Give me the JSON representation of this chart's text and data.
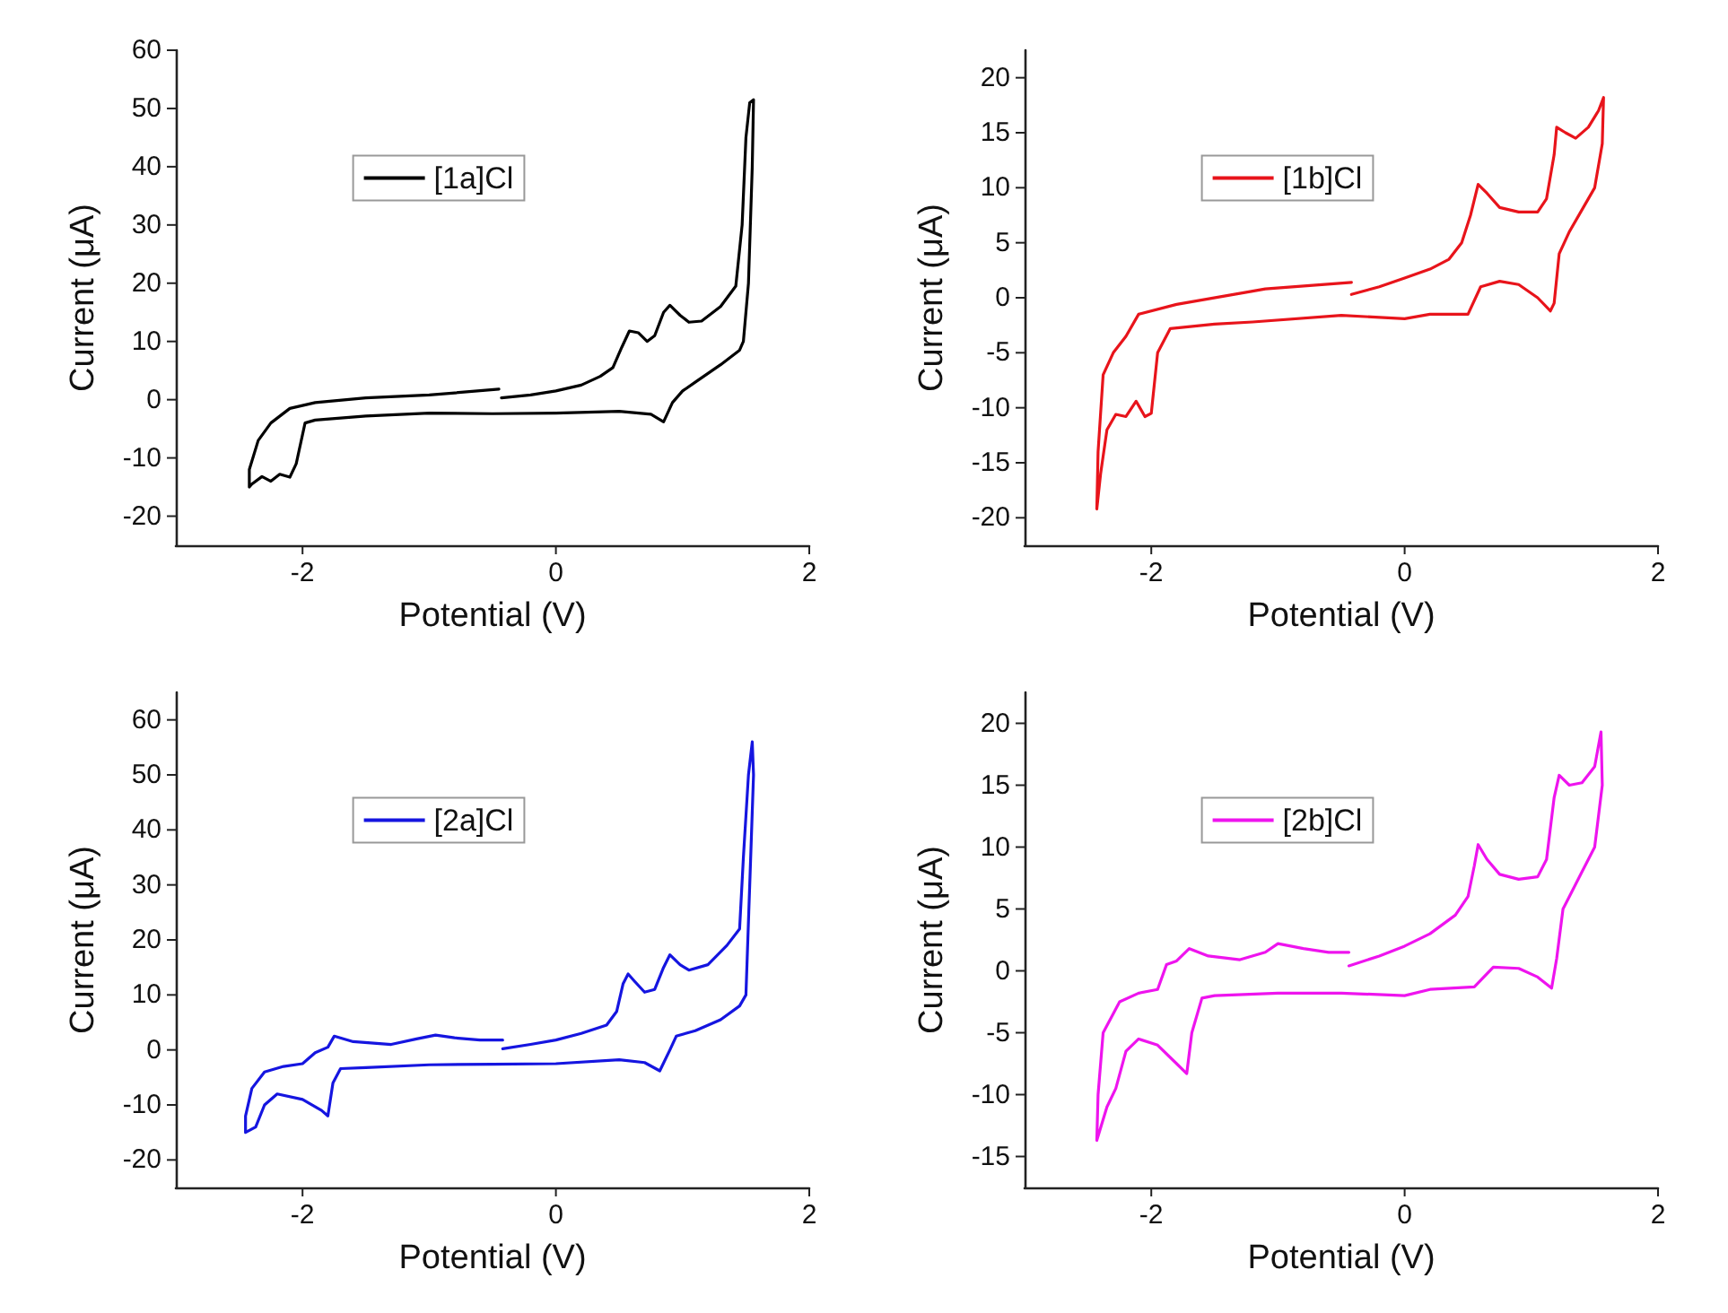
{
  "chart_data": [
    {
      "type": "line",
      "xlabel": "Potential (V)",
      "ylabel": "Current (μA)",
      "xlim": [
        -3,
        2
      ],
      "xticks": [
        -2,
        0,
        2
      ],
      "ylim": [
        -25,
        60
      ],
      "yticks": [
        -20,
        -10,
        0,
        10,
        20,
        30,
        40,
        50,
        60
      ],
      "legend": "top",
      "marker": "none",
      "line_style": "solid",
      "series": [
        {
          "name": "[1a]Cl",
          "color": "#000000",
          "x": [
            -0.43,
            -0.2,
            0,
            0.2,
            0.35,
            0.45,
            0.52,
            0.58,
            0.65,
            0.72,
            0.78,
            0.85,
            0.9,
            0.98,
            1.05,
            1.15,
            1.3,
            1.42,
            1.47,
            1.5,
            1.53,
            1.56,
            1.55,
            1.52,
            1.48,
            1.45,
            1.3,
            1.1,
            1.0,
            0.92,
            0.85,
            0.75,
            0.5,
            0,
            -0.5,
            -1,
            -1.5,
            -1.9,
            -1.98,
            -2.05,
            -2.1,
            -2.18,
            -2.25,
            -2.32,
            -2.4,
            -2.42,
            -2.42,
            -2.35,
            -2.25,
            -2.1,
            -1.9,
            -1.5,
            -1,
            -0.45
          ],
          "values": [
            0.3,
            0.8,
            1.5,
            2.5,
            4,
            5.5,
            9,
            11.8,
            11.5,
            10,
            11,
            15,
            16.2,
            14.5,
            13.3,
            13.5,
            16,
            19.5,
            30,
            45,
            51,
            51.5,
            40,
            20,
            10,
            8.5,
            6,
            3,
            1.5,
            -0.5,
            -3.8,
            -2.5,
            -2,
            -2.3,
            -2.4,
            -2.3,
            -2.8,
            -3.5,
            -4,
            -11,
            -13.3,
            -12.8,
            -14,
            -13.2,
            -14.5,
            -15,
            -12,
            -7,
            -4,
            -1.5,
            -0.5,
            0.3,
            0.8,
            1.8
          ]
        }
      ]
    },
    {
      "type": "line",
      "xlabel": "Potential (V)",
      "ylabel": "Current (μA)",
      "xlim": [
        -3,
        2
      ],
      "xticks": [
        -2,
        0,
        2
      ],
      "ylim": [
        -22.5,
        22.5
      ],
      "yticks": [
        -20,
        -15,
        -10,
        -5,
        0,
        5,
        10,
        15,
        20
      ],
      "legend": "top",
      "marker": "none",
      "line_style": "solid",
      "series": [
        {
          "name": "[1b]Cl",
          "color": "#e8141b",
          "x": [
            -0.42,
            -0.2,
            0,
            0.2,
            0.35,
            0.45,
            0.52,
            0.58,
            0.65,
            0.75,
            0.9,
            1.05,
            1.12,
            1.18,
            1.2,
            1.27,
            1.35,
            1.45,
            1.53,
            1.57,
            1.56,
            1.5,
            1.4,
            1.3,
            1.22,
            1.18,
            1.15,
            1.05,
            0.9,
            0.75,
            0.6,
            0.5,
            0.2,
            0,
            -0.5,
            -1.2,
            -1.5,
            -1.85,
            -1.95,
            -2.0,
            -2.05,
            -2.12,
            -2.2,
            -2.28,
            -2.35,
            -2.4,
            -2.43,
            -2.42,
            -2.38,
            -2.3,
            -2.2,
            -2.1,
            -1.8,
            -1.2,
            -1.1,
            -0.42
          ],
          "values": [
            0.3,
            1,
            1.8,
            2.6,
            3.5,
            5,
            7.5,
            10.3,
            9.5,
            8.2,
            7.8,
            7.8,
            9,
            13,
            15.5,
            15,
            14.5,
            15.5,
            17,
            18.2,
            14,
            10,
            8,
            6,
            4,
            -0.5,
            -1.2,
            0,
            1.2,
            1.5,
            1,
            -1.5,
            -1.5,
            -1.9,
            -1.6,
            -2.2,
            -2.4,
            -2.8,
            -5,
            -10.5,
            -10.8,
            -9.4,
            -10.8,
            -10.6,
            -12,
            -16,
            -19.2,
            -14,
            -7,
            -5,
            -3.5,
            -1.5,
            -0.6,
            0.6,
            0.8,
            1.4
          ]
        }
      ]
    },
    {
      "type": "line",
      "xlabel": "Potential (V)",
      "ylabel": "Current (μA)",
      "xlim": [
        -3,
        2
      ],
      "xticks": [
        -2,
        0,
        2
      ],
      "ylim": [
        -25,
        65
      ],
      "yticks": [
        -20,
        -10,
        0,
        10,
        20,
        30,
        40,
        50,
        60
      ],
      "legend": "top",
      "marker": "none",
      "line_style": "solid",
      "series": [
        {
          "name": "[2a]Cl",
          "color": "#1515e0",
          "x": [
            -0.42,
            -0.2,
            0,
            0.2,
            0.4,
            0.48,
            0.53,
            0.57,
            0.62,
            0.7,
            0.78,
            0.85,
            0.9,
            0.98,
            1.05,
            1.2,
            1.35,
            1.45,
            1.48,
            1.52,
            1.55,
            1.56,
            1.53,
            1.5,
            1.45,
            1.3,
            1.1,
            0.95,
            0.9,
            0.82,
            0.7,
            0.5,
            0,
            -0.5,
            -1,
            -1.5,
            -1.7,
            -1.76,
            -1.8,
            -1.85,
            -2,
            -2.2,
            -2.3,
            -2.37,
            -2.45,
            -2.45,
            -2.4,
            -2.3,
            -2.15,
            -2,
            -1.9,
            -1.8,
            -1.75,
            -1.6,
            -1.3,
            -1.1,
            -0.95,
            -0.8,
            -0.6,
            -0.42
          ],
          "values": [
            0.2,
            1,
            1.8,
            3,
            4.5,
            7,
            12,
            13.8,
            12.5,
            10.5,
            11,
            15,
            17.3,
            15.5,
            14.5,
            15.5,
            19,
            22,
            35,
            50,
            56,
            50,
            30,
            10,
            8,
            5.5,
            3.5,
            2.5,
            0,
            -3.8,
            -2.3,
            -1.8,
            -2.5,
            -2.6,
            -2.7,
            -3.2,
            -3.4,
            -6,
            -12,
            -11,
            -9,
            -8,
            -10,
            -14,
            -15,
            -12,
            -7,
            -4,
            -3,
            -2.5,
            -0.5,
            0.5,
            2.5,
            1.5,
            1,
            2,
            2.7,
            2.2,
            1.8,
            1.8
          ]
        }
      ]
    },
    {
      "type": "line",
      "xlabel": "Potential (V)",
      "ylabel": "Current (μA)",
      "xlim": [
        -3,
        2
      ],
      "xticks": [
        -2,
        0,
        2
      ],
      "ylim": [
        -17.5,
        22.5
      ],
      "yticks": [
        -15,
        -10,
        -5,
        0,
        5,
        10,
        15,
        20
      ],
      "legend": "top",
      "marker": "none",
      "line_style": "solid",
      "series": [
        {
          "name": "[2b]Cl",
          "color": "#ee14ee",
          "x": [
            -0.44,
            -0.2,
            0,
            0.2,
            0.4,
            0.5,
            0.55,
            0.58,
            0.65,
            0.75,
            0.9,
            1.05,
            1.12,
            1.18,
            1.22,
            1.3,
            1.4,
            1.5,
            1.55,
            1.56,
            1.5,
            1.4,
            1.3,
            1.25,
            1.2,
            1.16,
            1.05,
            0.9,
            0.7,
            0.55,
            0.2,
            0,
            -0.5,
            -1,
            -1.5,
            -1.6,
            -1.68,
            -1.72,
            -1.8,
            -1.95,
            -2.1,
            -2.2,
            -2.28,
            -2.35,
            -2.43,
            -2.42,
            -2.38,
            -2.25,
            -2.1,
            -1.95,
            -1.88,
            -1.8,
            -1.7,
            -1.55,
            -1.3,
            -1.1,
            -1.0,
            -0.8,
            -0.6,
            -0.44
          ],
          "values": [
            0.4,
            1.2,
            2,
            3,
            4.5,
            6,
            8.5,
            10.2,
            9,
            7.8,
            7.4,
            7.6,
            9,
            14,
            15.8,
            15,
            15.2,
            16.5,
            19.3,
            15,
            10,
            8,
            6,
            5,
            1,
            -1.4,
            -0.5,
            0.2,
            0.3,
            -1.3,
            -1.5,
            -2,
            -1.8,
            -1.8,
            -2,
            -2.2,
            -5,
            -8.3,
            -7.5,
            -6,
            -5.5,
            -6.5,
            -9.5,
            -11,
            -13.7,
            -10,
            -5,
            -2.5,
            -1.8,
            -1.5,
            0.5,
            0.8,
            1.8,
            1.2,
            0.9,
            1.5,
            2.2,
            1.8,
            1.5,
            1.5
          ]
        }
      ]
    }
  ]
}
